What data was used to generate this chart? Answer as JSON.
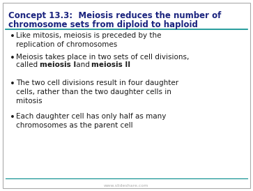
{
  "title_line1": "Concept 13.3:  Meiosis reduces the number of",
  "title_line2": "chromosome sets from diploid to haploid",
  "title_color": "#1a237e",
  "title_fontsize": 8.5,
  "bullet_color": "#1a1a1a",
  "bullet_fontsize": 7.5,
  "line_color": "#008b8b",
  "background_color": "#ffffff",
  "border_color": "#aaaaaa",
  "watermark": "www.slideshare.com",
  "watermark_color": "#aaaaaa",
  "watermark_fontsize": 4.5,
  "bullet1": "Like mitosis, meiosis is preceded by the\nreplication of chromosomes",
  "bullet2_line1": "Meiosis takes place in two sets of cell divisions,",
  "bullet2_line2_pre": "called ",
  "bullet2_bold1": "meiosis I",
  "bullet2_mid": " and ",
  "bullet2_bold2": "meiosis II",
  "bullet3": "The two cell divisions result in four daughter\ncells, rather than the two daughter cells in\nmitosis",
  "bullet4": "Each daughter cell has only half as many\nchromosomes as the parent cell"
}
